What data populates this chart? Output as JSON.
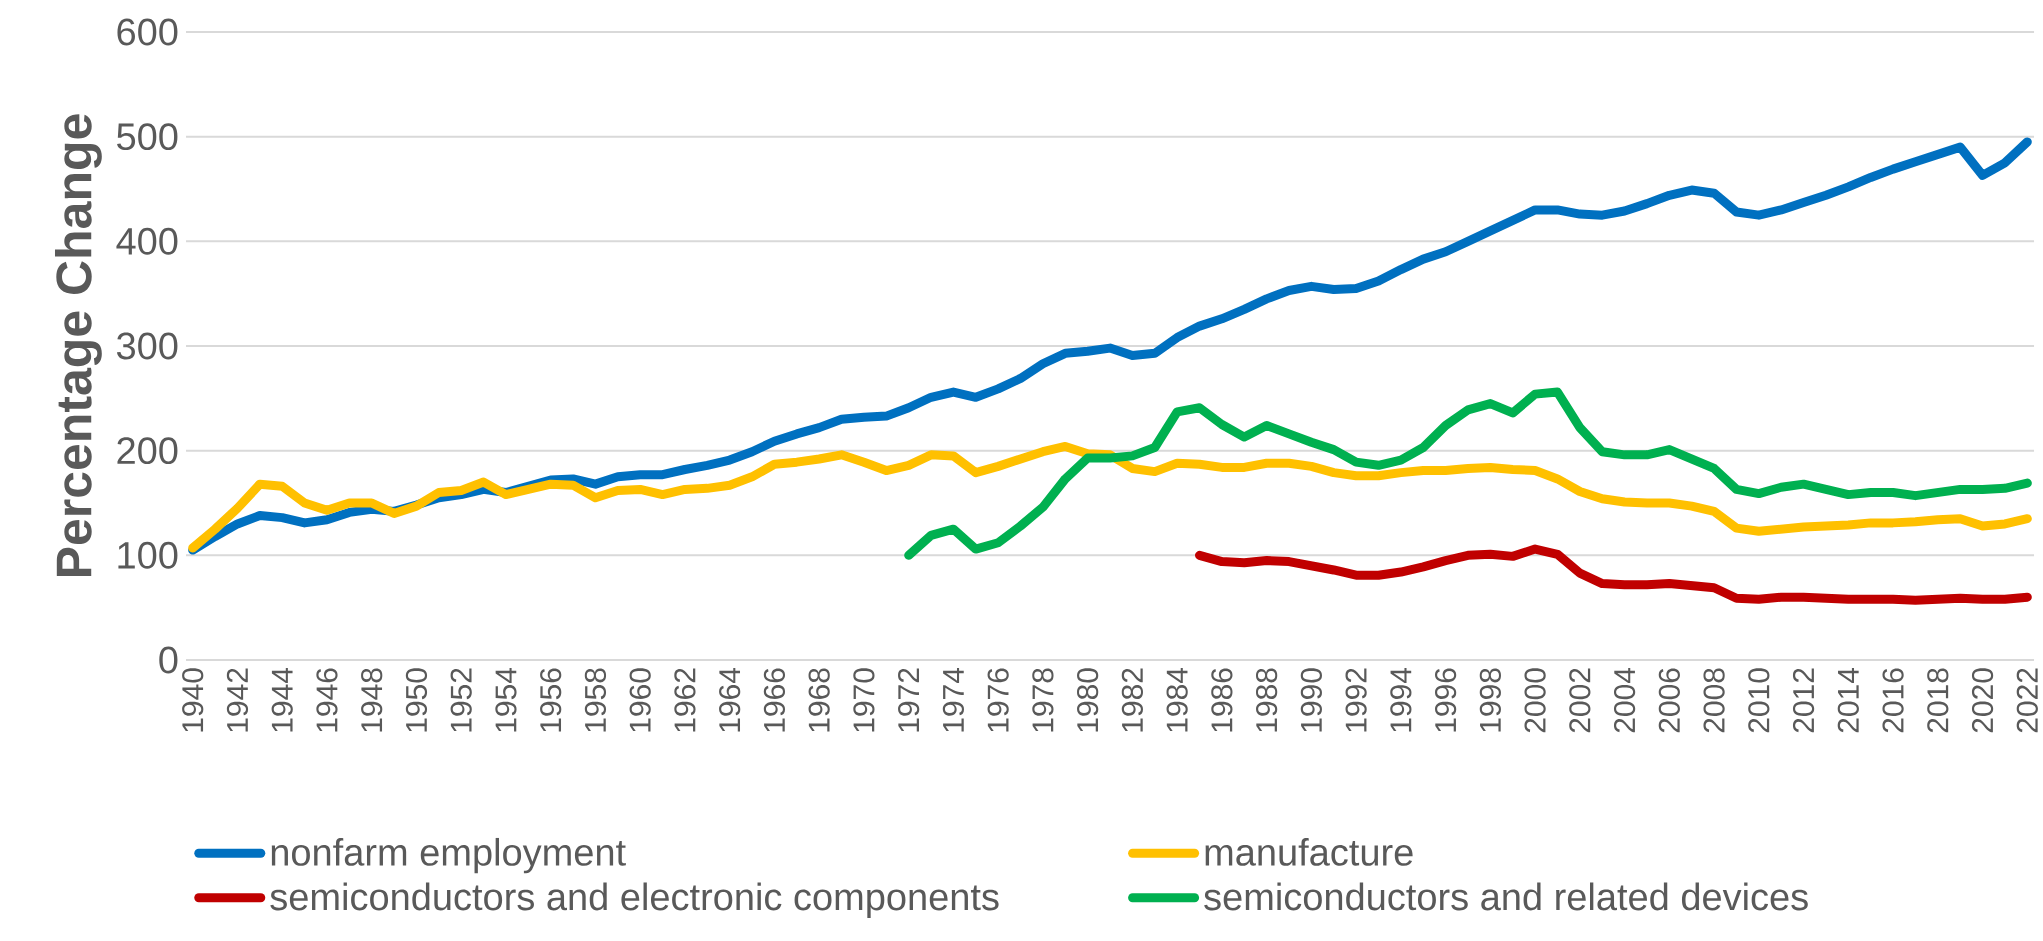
{
  "chart_data": {
    "type": "line",
    "ylabel": "Percentage Change",
    "categories": [
      "1940",
      null,
      "1942",
      null,
      "1944",
      null,
      "1946",
      null,
      "1948",
      null,
      "1950",
      null,
      "1952",
      null,
      "1954",
      null,
      "1956",
      null,
      "1958",
      null,
      "1960",
      null,
      "1962",
      null,
      "1964",
      null,
      "1966",
      null,
      "1968",
      null,
      "1970",
      null,
      "1972",
      null,
      "1974",
      null,
      "1976",
      null,
      "1978",
      null,
      "1980",
      null,
      "1982",
      null,
      "1984",
      null,
      "1986",
      null,
      "1988",
      null,
      "1990",
      null,
      "1992",
      null,
      "1994",
      null,
      "1996",
      null,
      "1998",
      null,
      "2000",
      null,
      "2002",
      null,
      "2004",
      null,
      "2006",
      null,
      "2008",
      null,
      "2010",
      null,
      "2012",
      null,
      "2014",
      null,
      "2016",
      null,
      "2018",
      null,
      "2020",
      null,
      "2022"
    ],
    "series": [
      {
        "name": "nonfarm employment",
        "color": "#0070c0",
        "values": [
          105,
          118,
          130,
          138,
          136,
          131,
          134,
          141,
          144,
          142,
          148,
          155,
          158,
          163,
          160,
          166,
          172,
          173,
          168,
          175,
          177,
          177,
          182,
          186,
          191,
          199,
          209,
          216,
          222,
          230,
          232,
          233,
          241,
          251,
          256,
          251,
          259,
          269,
          283,
          293,
          295,
          298,
          291,
          293,
          308,
          319,
          326,
          335,
          345,
          353,
          357,
          354,
          355,
          362,
          373,
          383,
          390,
          400,
          410,
          420,
          430,
          430,
          426,
          425,
          429,
          436,
          444,
          449,
          446,
          428,
          425,
          430,
          437,
          444,
          452,
          461,
          469,
          476,
          483,
          490,
          463,
          475,
          495
        ]
      },
      {
        "name": "manufacture",
        "color": "#ffc000",
        "values": [
          107,
          125,
          145,
          168,
          166,
          150,
          143,
          150,
          150,
          140,
          147,
          160,
          162,
          170,
          158,
          163,
          168,
          167,
          155,
          162,
          163,
          158,
          163,
          164,
          167,
          175,
          187,
          189,
          192,
          196,
          189,
          181,
          186,
          196,
          195,
          179,
          185,
          192,
          199,
          204,
          197,
          196,
          183,
          180,
          188,
          187,
          184,
          184,
          188,
          188,
          185,
          179,
          176,
          176,
          179,
          181,
          181,
          183,
          184,
          182,
          181,
          173,
          161,
          154,
          151,
          150,
          150,
          147,
          142,
          126,
          123,
          125,
          127,
          128,
          129,
          131,
          131,
          132,
          134,
          135,
          128,
          130,
          135
        ]
      },
      {
        "name": "semiconductors and electronic components",
        "color": "#c00000",
        "values": [
          null,
          null,
          null,
          null,
          null,
          null,
          null,
          null,
          null,
          null,
          null,
          null,
          null,
          null,
          null,
          null,
          null,
          null,
          null,
          null,
          null,
          null,
          null,
          null,
          null,
          null,
          null,
          null,
          null,
          null,
          null,
          null,
          null,
          null,
          null,
          null,
          null,
          null,
          null,
          null,
          null,
          null,
          null,
          null,
          null,
          100,
          94,
          93,
          95,
          94,
          90,
          86,
          81,
          81,
          84,
          89,
          95,
          100,
          101,
          99,
          106,
          101,
          83,
          73,
          72,
          72,
          73,
          71,
          69,
          59,
          58,
          60,
          60,
          59,
          58,
          58,
          58,
          57,
          58,
          59,
          58,
          58,
          60
        ]
      },
      {
        "name": "semiconductors and related devices",
        "color": "#00b050",
        "values": [
          null,
          null,
          null,
          null,
          null,
          null,
          null,
          null,
          null,
          null,
          null,
          null,
          null,
          null,
          null,
          null,
          null,
          null,
          null,
          null,
          null,
          null,
          null,
          null,
          null,
          null,
          null,
          null,
          null,
          null,
          null,
          null,
          100,
          119,
          125,
          106,
          112,
          128,
          146,
          173,
          193,
          193,
          195,
          203,
          237,
          241,
          225,
          213,
          224,
          216,
          208,
          201,
          189,
          186,
          191,
          203,
          224,
          239,
          245,
          236,
          254,
          256,
          222,
          199,
          196,
          196,
          201,
          192,
          183,
          163,
          159,
          165,
          168,
          163,
          158,
          160,
          160,
          157,
          160,
          163,
          163,
          164,
          169
        ]
      }
    ],
    "ylim": [
      0,
      600
    ],
    "yticks": [
      0,
      100,
      200,
      300,
      400,
      500,
      600
    ],
    "grid": "y",
    "legend": "bottom"
  }
}
